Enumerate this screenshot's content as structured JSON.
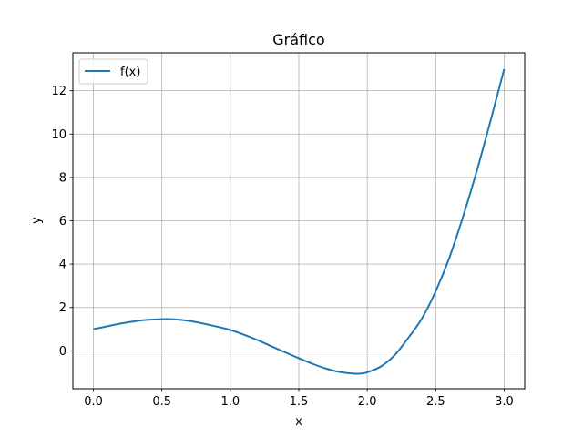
{
  "chart_data": {
    "type": "line",
    "title": "Gráfico",
    "xlabel": "x",
    "ylabel": "y",
    "xlim": [
      -0.15,
      3.15
    ],
    "ylim": [
      -1.75,
      13.75
    ],
    "xticks": [
      0.0,
      0.5,
      1.0,
      1.5,
      2.0,
      2.5,
      3.0
    ],
    "xtick_labels": [
      "0.0",
      "0.5",
      "1.0",
      "1.5",
      "2.0",
      "2.5",
      "3.0"
    ],
    "yticks": [
      0,
      2,
      4,
      6,
      8,
      10,
      12
    ],
    "ytick_labels": [
      "0",
      "2",
      "4",
      "6",
      "8",
      "10",
      "12"
    ],
    "grid": true,
    "legend": {
      "position": "top-left",
      "entries": [
        "f(x)"
      ]
    },
    "series": [
      {
        "name": "f(x)",
        "color": "#1f77b4",
        "x": [
          0.0,
          0.1,
          0.2,
          0.3,
          0.4,
          0.5,
          0.55,
          0.6,
          0.7,
          0.8,
          0.9,
          1.0,
          1.1,
          1.2,
          1.3,
          1.4,
          1.5,
          1.6,
          1.7,
          1.8,
          1.9,
          1.95,
          2.0,
          2.1,
          2.2,
          2.3,
          2.4,
          2.5,
          2.6,
          2.7,
          2.8,
          2.9,
          3.0
        ],
        "y": [
          1.0,
          1.13,
          1.26,
          1.36,
          1.43,
          1.46,
          1.46,
          1.45,
          1.38,
          1.26,
          1.12,
          0.96,
          0.74,
          0.49,
          0.21,
          -0.07,
          -0.34,
          -0.6,
          -0.82,
          -0.98,
          -1.05,
          -1.05,
          -0.99,
          -0.72,
          -0.2,
          0.6,
          1.5,
          2.75,
          4.3,
          6.2,
          8.3,
          10.6,
          13.0
        ]
      }
    ]
  }
}
